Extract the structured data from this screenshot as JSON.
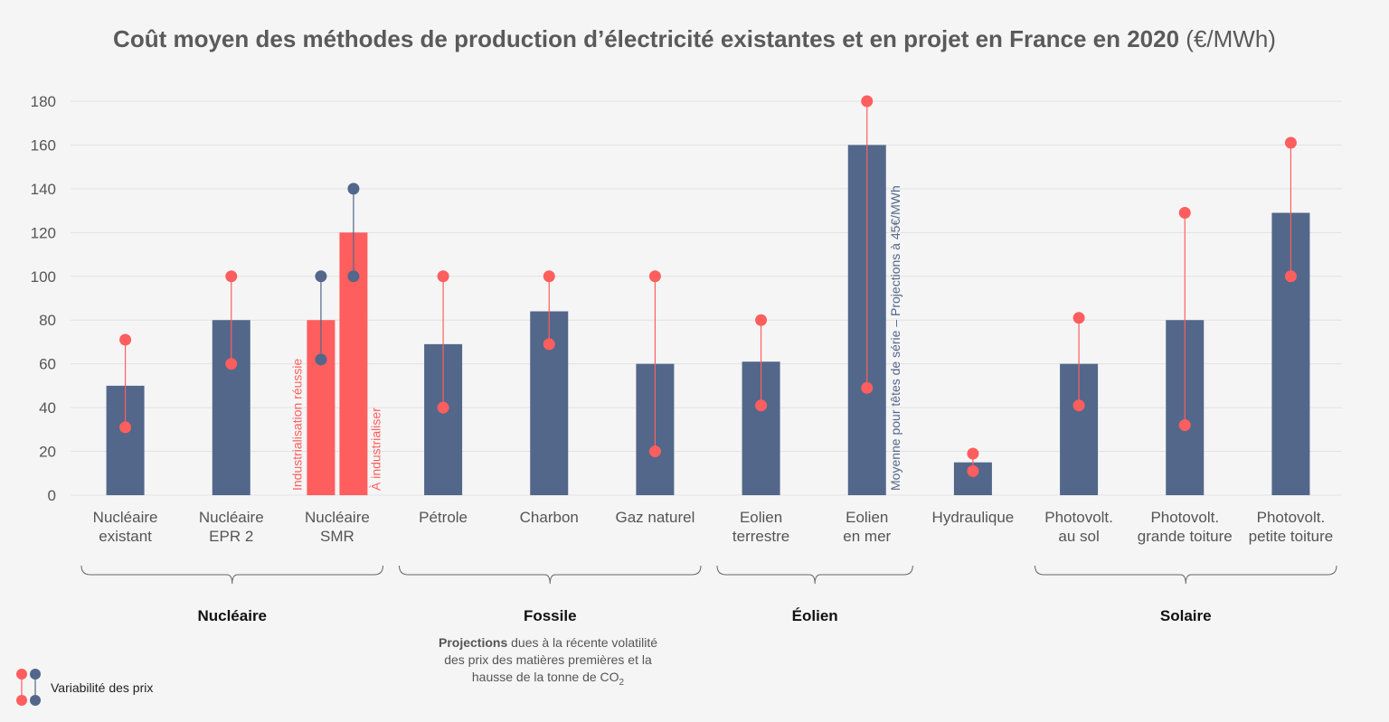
{
  "chart_data": {
    "type": "bar",
    "title": "Coût moyen des méthodes de production d’électricité existantes et en projet en France en 2020",
    "title_unit": "(€/MWh)",
    "ylim": [
      0,
      180
    ],
    "yticks": [
      0,
      20,
      40,
      60,
      80,
      100,
      120,
      140,
      160,
      180
    ],
    "grid": true,
    "colors": {
      "bar": "#52678a",
      "accent": "#ff5e5e",
      "range_red": "#ff5e5e",
      "range_blue": "#52678a",
      "grid": "#e2e2e2"
    },
    "categories": [
      {
        "label": [
          "Nucléaire",
          "existant"
        ],
        "bars": [
          {
            "value": 50,
            "color": "bar",
            "range": [
              31,
              71
            ],
            "range_color": "range_red"
          }
        ]
      },
      {
        "label": [
          "Nucléaire",
          "EPR 2"
        ],
        "bars": [
          {
            "value": 80,
            "color": "bar",
            "range": [
              60,
              100
            ],
            "range_color": "range_red"
          }
        ]
      },
      {
        "label": [
          "Nucléaire",
          "SMR"
        ],
        "bars": [
          {
            "value": 80,
            "color": "accent",
            "range": [
              62,
              100
            ],
            "range_color": "range_blue",
            "annotation": "Industrialisation réussie"
          },
          {
            "value": 120,
            "color": "accent",
            "range": [
              100,
              140
            ],
            "range_color": "range_blue",
            "annotation": "À industrialiser"
          }
        ]
      },
      {
        "label": [
          "Pétrole"
        ],
        "bars": [
          {
            "value": 69,
            "color": "bar",
            "range": [
              40,
              100
            ],
            "range_color": "range_red"
          }
        ]
      },
      {
        "label": [
          "Charbon"
        ],
        "bars": [
          {
            "value": 84,
            "color": "bar",
            "range": [
              69,
              100
            ],
            "range_color": "range_red"
          }
        ]
      },
      {
        "label": [
          "Gaz naturel"
        ],
        "bars": [
          {
            "value": 60,
            "color": "bar",
            "range": [
              20,
              100
            ],
            "range_color": "range_red"
          }
        ]
      },
      {
        "label": [
          "Eolien",
          "terrestre"
        ],
        "bars": [
          {
            "value": 61,
            "color": "bar",
            "range": [
              41,
              80
            ],
            "range_color": "range_red"
          }
        ]
      },
      {
        "label": [
          "Eolien",
          "en mer"
        ],
        "bars": [
          {
            "value": 160,
            "color": "bar",
            "range": [
              49,
              180
            ],
            "range_color": "range_red",
            "annotation": "Moyenne pour têtes de série – Projections à 45€/MWh"
          }
        ]
      },
      {
        "label": [
          "Hydraulique"
        ],
        "bars": [
          {
            "value": 15,
            "color": "bar",
            "range": [
              11,
              19
            ],
            "range_color": "range_red"
          }
        ]
      },
      {
        "label": [
          "Photovolt.",
          "au sol"
        ],
        "bars": [
          {
            "value": 60,
            "color": "bar",
            "range": [
              41,
              81
            ],
            "range_color": "range_red"
          }
        ]
      },
      {
        "label": [
          "Photovolt.",
          "grande toiture"
        ],
        "bars": [
          {
            "value": 80,
            "color": "bar",
            "range": [
              32,
              129
            ],
            "range_color": "range_red"
          }
        ]
      },
      {
        "label": [
          "Photovolt.",
          "petite toiture"
        ],
        "bars": [
          {
            "value": 129,
            "color": "bar",
            "range": [
              100,
              161
            ],
            "range_color": "range_red"
          }
        ]
      }
    ],
    "groups": [
      {
        "label": "Nucléaire",
        "from": 0,
        "to": 2
      },
      {
        "label": "Fossile",
        "from": 3,
        "to": 5
      },
      {
        "label": "Éolien",
        "from": 6,
        "to": 7
      },
      {
        "label": "Solaire",
        "from": 9,
        "to": 11
      }
    ],
    "fossil_note": {
      "bold": "Projections",
      "line1": " dues à la récente volatilité",
      "line2": "des prix des matières premières et la",
      "line3": "hausse de la tonne de CO",
      "line3_sub": "2"
    },
    "legend": {
      "label": "Variabilité des prix",
      "placement": "bottom-left"
    }
  }
}
